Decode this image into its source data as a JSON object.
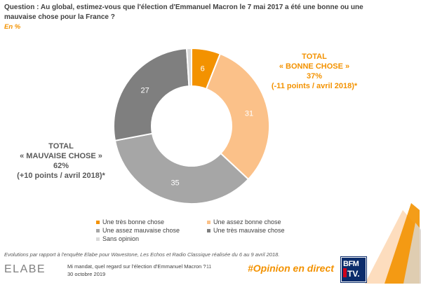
{
  "question": "Question : Au global, estimez-vous que l'élection d'Emmanuel Macron le 7 mai 2017 a été une bonne ou une mauvaise chose pour la France ?",
  "unit_label": "En %",
  "totals": {
    "good": {
      "title": "TOTAL",
      "label": "« BONNE CHOSE »",
      "value": "37%",
      "evolution": "(-11 points / avril 2018)*"
    },
    "bad": {
      "title": "TOTAL",
      "label": "« MAUVAISE CHOSE »",
      "value": "62%",
      "evolution": "(+10 points / avril 2018)*"
    }
  },
  "chart_data": {
    "type": "pie",
    "variant": "donut",
    "title": "Au global, estimez-vous que l'élection d'Emmanuel Macron le 7 mai 2017 a été une bonne ou une mauvaise chose pour la France ?",
    "unit": "%",
    "slices": [
      {
        "label": "Une très bonne chose",
        "value": 6,
        "color": "#f39200",
        "show_label": true
      },
      {
        "label": "Une assez bonne chose",
        "value": 31,
        "color": "#fbc189",
        "show_label": true
      },
      {
        "label": "Une assez mauvaise chose",
        "value": 35,
        "color": "#a6a6a6",
        "show_label": true
      },
      {
        "label": "Une très mauvaise chose",
        "value": 27,
        "color": "#7f7f7f",
        "show_label": true
      },
      {
        "label": "Sans opinion",
        "value": 1,
        "color": "#d9d9d9",
        "show_label": false
      }
    ],
    "legend_position": "bottom"
  },
  "footnote": "Evolutions par rapport à l'enquête Elabe pour Wavestone, Les Echos et Radio Classique réalisée du 6 au 9 avril 2018.",
  "footer": {
    "brand": "ELABE",
    "survey_title": "Mi mandat, quel regard sur l'élection d'Emmanuel Macron ?",
    "date": "30 octobre 2019",
    "page_number": "11",
    "hashtag": "#Opinion en direct",
    "tv_logo_top": "BFM",
    "tv_logo_bottom": "TV."
  },
  "colors": {
    "accent": "#f39200",
    "text": "#404040"
  }
}
